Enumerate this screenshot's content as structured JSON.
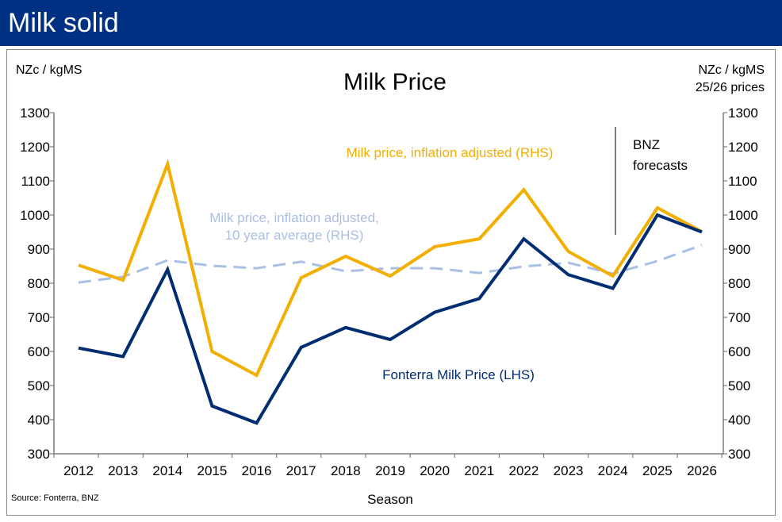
{
  "header": {
    "title": "Milk solid"
  },
  "chart_data": {
    "type": "line",
    "title": "Milk Price",
    "xlabel": "Season",
    "ylabel_left": "NZc / kgMS",
    "ylabel_right": "NZc / kgMS",
    "ylabel_right_sub": "25/26 prices",
    "ylim": [
      300,
      1300
    ],
    "yticks": [
      300,
      400,
      500,
      600,
      700,
      800,
      900,
      1000,
      1100,
      1200,
      1300
    ],
    "x": [
      2012,
      2013,
      2014,
      2015,
      2016,
      2017,
      2018,
      2019,
      2020,
      2021,
      2022,
      2023,
      2024,
      2025,
      2026
    ],
    "series": [
      {
        "name": "Fonterra Milk Price (LHS)",
        "color": "#002D72",
        "dash": false,
        "values": [
          610,
          585,
          840,
          440,
          390,
          612,
          670,
          635,
          715,
          755,
          930,
          825,
          785,
          1000,
          950
        ]
      },
      {
        "name": "Milk price, inflation adjusted (RHS)",
        "color": "#F2AF00",
        "dash": false,
        "values": [
          853,
          809,
          1149,
          600,
          530,
          816,
          879,
          821,
          907,
          930,
          1074,
          893,
          821,
          1021,
          951
        ]
      },
      {
        "name_line1": "Milk price, inflation adjusted,",
        "name_line2": "10 year average (RHS)",
        "color": "#A9BFE3",
        "dash": true,
        "values": [
          802,
          819,
          867,
          851,
          844,
          863,
          835,
          844,
          844,
          830,
          849,
          860,
          828,
          865,
          912
        ]
      }
    ],
    "annotation": {
      "line1": "BNZ",
      "line2": "forecasts",
      "at_x": 2024.5
    },
    "source": "Source: Fonterra, BNZ"
  }
}
